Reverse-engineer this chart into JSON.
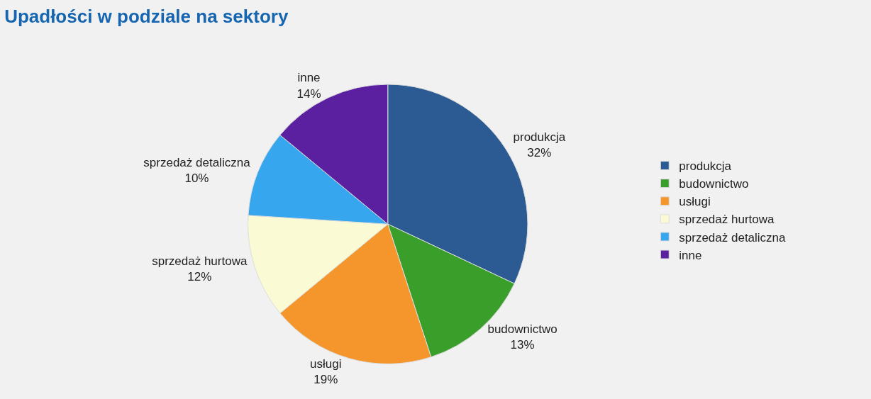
{
  "chart_data": {
    "type": "pie",
    "title": "Upadłości w podziale na sektory",
    "categories": [
      "produkcja",
      "budownictwo",
      "usługi",
      "sprzedaż hurtowa",
      "sprzedaż detaliczna",
      "inne"
    ],
    "values": [
      32,
      13,
      19,
      12,
      10,
      14
    ],
    "value_labels": [
      "32%",
      "13%",
      "19%",
      "12%",
      "10%",
      "14%"
    ],
    "colors": [
      "#2b5b92",
      "#3a9e2a",
      "#f5962c",
      "#fafad4",
      "#36a6ee",
      "#5a20a0"
    ],
    "legend": "right"
  }
}
